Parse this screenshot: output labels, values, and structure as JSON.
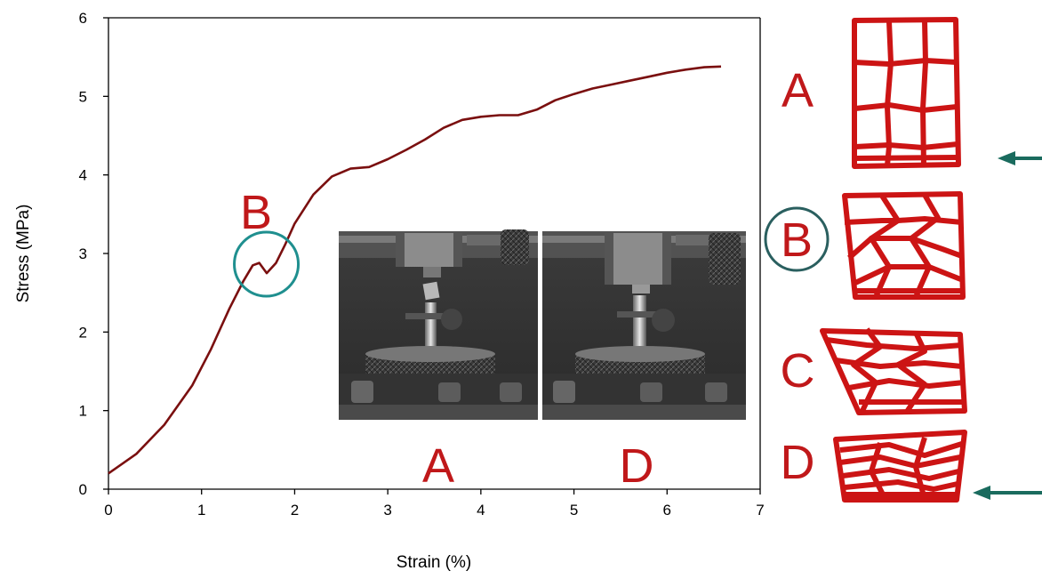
{
  "chart_data": {
    "type": "line",
    "xlabel": "Strain (%)",
    "ylabel": "Stress (MPa)",
    "xlim": [
      0,
      7
    ],
    "ylim": [
      0,
      6
    ],
    "x_ticks": [
      "0",
      "1",
      "2",
      "3",
      "4",
      "5",
      "6",
      "7"
    ],
    "y_ticks": [
      "0",
      "1",
      "2",
      "3",
      "4",
      "5",
      "6"
    ],
    "grid": false,
    "series": [
      {
        "color": "#7a0f0f",
        "points": [
          [
            0.0,
            0.2
          ],
          [
            0.3,
            0.45
          ],
          [
            0.6,
            0.82
          ],
          [
            0.9,
            1.32
          ],
          [
            1.1,
            1.78
          ],
          [
            1.3,
            2.3
          ],
          [
            1.45,
            2.65
          ],
          [
            1.55,
            2.85
          ],
          [
            1.62,
            2.88
          ],
          [
            1.7,
            2.75
          ],
          [
            1.8,
            2.88
          ],
          [
            1.9,
            3.12
          ],
          [
            2.0,
            3.38
          ],
          [
            2.2,
            3.75
          ],
          [
            2.4,
            3.98
          ],
          [
            2.6,
            4.08
          ],
          [
            2.8,
            4.1
          ],
          [
            3.0,
            4.2
          ],
          [
            3.2,
            4.32
          ],
          [
            3.4,
            4.45
          ],
          [
            3.6,
            4.6
          ],
          [
            3.8,
            4.7
          ],
          [
            4.0,
            4.74
          ],
          [
            4.2,
            4.76
          ],
          [
            4.4,
            4.76
          ],
          [
            4.6,
            4.83
          ],
          [
            4.8,
            4.95
          ],
          [
            5.0,
            5.03
          ],
          [
            5.2,
            5.1
          ],
          [
            5.4,
            5.15
          ],
          [
            5.6,
            5.2
          ],
          [
            5.8,
            5.25
          ],
          [
            6.0,
            5.3
          ],
          [
            6.2,
            5.34
          ],
          [
            6.4,
            5.37
          ],
          [
            6.58,
            5.38
          ]
        ]
      }
    ],
    "annotations": [
      {
        "label": "B",
        "x": 1.6,
        "y": 2.83,
        "color": "#c0181a",
        "circle_color": "#1f8f8f"
      }
    ]
  },
  "photos": {
    "captions": [
      "A",
      "D"
    ]
  },
  "stages": {
    "labels": [
      "A",
      "B",
      "C",
      "D"
    ],
    "highlighted": "B",
    "arrow_color": "#1a6b5e",
    "cell_color": "#cc1414"
  }
}
